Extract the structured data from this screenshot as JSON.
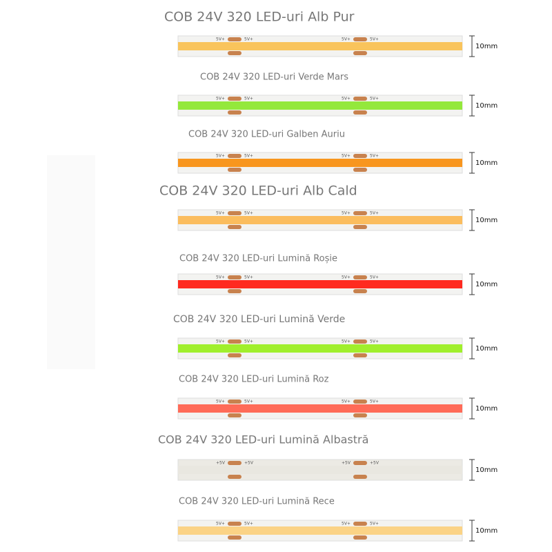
{
  "strips": [
    {
      "title": "COB 24V 320 LED-uri Alb Pur",
      "color": "#f9c45c",
      "pad_label": "5V+",
      "size_label": "10mm"
    },
    {
      "title": "COB 24V 320 LED-uri Verde Mars",
      "color": "#94e83c",
      "pad_label": "5V+",
      "size_label": "10mm"
    },
    {
      "title": "COB 24V 320 LED-uri Galben Auriu",
      "color": "#f8961e",
      "pad_label": "5V+",
      "size_label": "10mm"
    },
    {
      "title": "COB 24V 320 LED-uri Alb Cald",
      "color": "#fbbd5e",
      "pad_label": "5V+",
      "size_label": "10mm"
    },
    {
      "title": "COB 24V 320 LED-uri Lumină Roșie",
      "color": "#ff2a20",
      "pad_label": "5V+",
      "size_label": "10mm"
    },
    {
      "title": "COB 24V 320 LED-uri Lumină Verde",
      "color": "#a0ef2c",
      "pad_label": "5V+",
      "size_label": "10mm"
    },
    {
      "title": "COB 24V 320 LED-uri Lumină Roz",
      "color": "#ff6b58",
      "pad_label": "5V+",
      "size_label": "10mm"
    },
    {
      "title": "COB 24V 320 LED-uri Lumină Albastră",
      "color": "#e9e7e0",
      "pad_label": "+5V",
      "size_label": "10mm"
    },
    {
      "title": "COB 24V 320 LED-uri Lumină Rece",
      "color": "#fbd386",
      "pad_label": "5V+",
      "size_label": "10mm"
    }
  ]
}
